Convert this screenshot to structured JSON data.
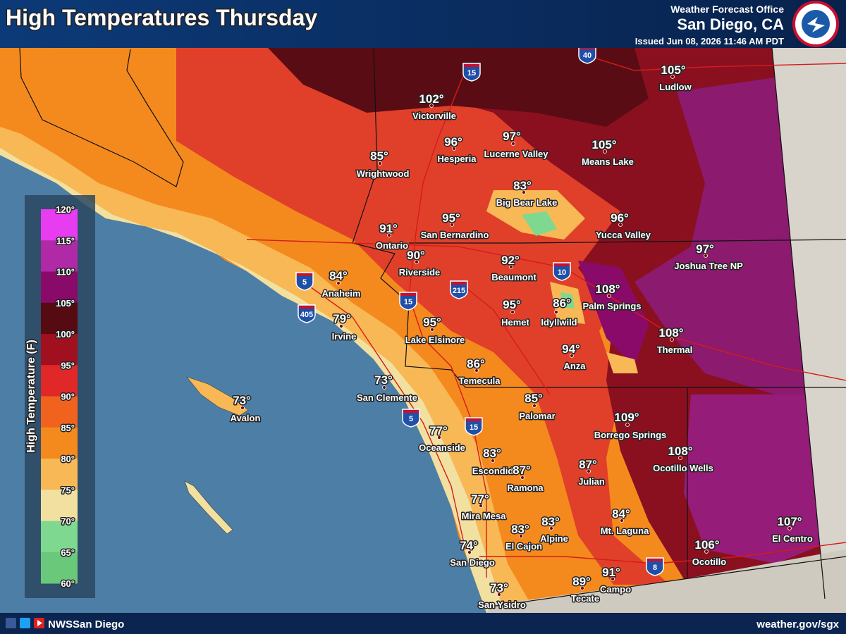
{
  "header": {
    "title": "High Temperatures Thursday",
    "office": "Weather Forecast Office",
    "location": "San Diego, CA",
    "issued": "Issued Jun 08, 2026 11:46 AM PDT"
  },
  "legend": {
    "title": "High Temperature (F)",
    "labels": [
      "120°",
      "115°",
      "110°",
      "105°",
      "100°",
      "95°",
      "90°",
      "85°",
      "80°",
      "75°",
      "70°",
      "65°",
      "60°"
    ],
    "colors": [
      "#e83cf0",
      "#b02aa8",
      "#8a0a6a",
      "#560a12",
      "#a0101e",
      "#e02828",
      "#f0621e",
      "#f48a1e",
      "#f8b855",
      "#f2e0a0",
      "#7ed890",
      "#6ac87a"
    ]
  },
  "cities": [
    {
      "name": "Victorville",
      "temp": "102°"
    },
    {
      "name": "Ludlow",
      "temp": "105°"
    },
    {
      "name": "Hesperia",
      "temp": "96°"
    },
    {
      "name": "Lucerne Valley",
      "temp": "97°"
    },
    {
      "name": "Means Lake",
      "temp": "105°"
    },
    {
      "name": "Wrightwood",
      "temp": "85°"
    },
    {
      "name": "Big Bear Lake",
      "temp": "83°"
    },
    {
      "name": "San Bernardino",
      "temp": "95°"
    },
    {
      "name": "Yucca Valley",
      "temp": "96°"
    },
    {
      "name": "Ontario",
      "temp": "91°"
    },
    {
      "name": "Riverside",
      "temp": "90°"
    },
    {
      "name": "Beaumont",
      "temp": "92°"
    },
    {
      "name": "Joshua Tree NP",
      "temp": "97°"
    },
    {
      "name": "Anaheim",
      "temp": "84°"
    },
    {
      "name": "Palm Springs",
      "temp": "108°"
    },
    {
      "name": "Hemet",
      "temp": "95°"
    },
    {
      "name": "Idyllwild",
      "temp": "86°"
    },
    {
      "name": "Irvine",
      "temp": "79°"
    },
    {
      "name": "Lake Elsinore",
      "temp": "95°"
    },
    {
      "name": "Thermal",
      "temp": "108°"
    },
    {
      "name": "Anza",
      "temp": "94°"
    },
    {
      "name": "Temecula",
      "temp": "86°"
    },
    {
      "name": "San Clemente",
      "temp": "73°"
    },
    {
      "name": "Avalon",
      "temp": "73°"
    },
    {
      "name": "Palomar",
      "temp": "85°"
    },
    {
      "name": "Borrego Springs",
      "temp": "109°"
    },
    {
      "name": "Oceanside",
      "temp": "77°"
    },
    {
      "name": "Ocotillo Wells",
      "temp": "108°"
    },
    {
      "name": "Escondido",
      "temp": "83°"
    },
    {
      "name": "Julian",
      "temp": "87°"
    },
    {
      "name": "Ramona",
      "temp": "87°"
    },
    {
      "name": "Mira Mesa",
      "temp": "77°"
    },
    {
      "name": "Mt. Laguna",
      "temp": "84°"
    },
    {
      "name": "El Centro",
      "temp": "107°"
    },
    {
      "name": "El Cajon",
      "temp": "83°"
    },
    {
      "name": "Alpine",
      "temp": "83°"
    },
    {
      "name": "San Diego",
      "temp": "74°"
    },
    {
      "name": "Ocotillo",
      "temp": "106°"
    },
    {
      "name": "Campo",
      "temp": "91°"
    },
    {
      "name": "Tecate",
      "temp": "89°"
    },
    {
      "name": "San Ysidro",
      "temp": "73°"
    }
  ],
  "shields": [
    "40",
    "15",
    "5",
    "405",
    "15",
    "215",
    "10",
    "5",
    "15",
    "8"
  ],
  "footer": {
    "handle": "NWSSan Diego",
    "url": "weather.gov/sgx"
  }
}
